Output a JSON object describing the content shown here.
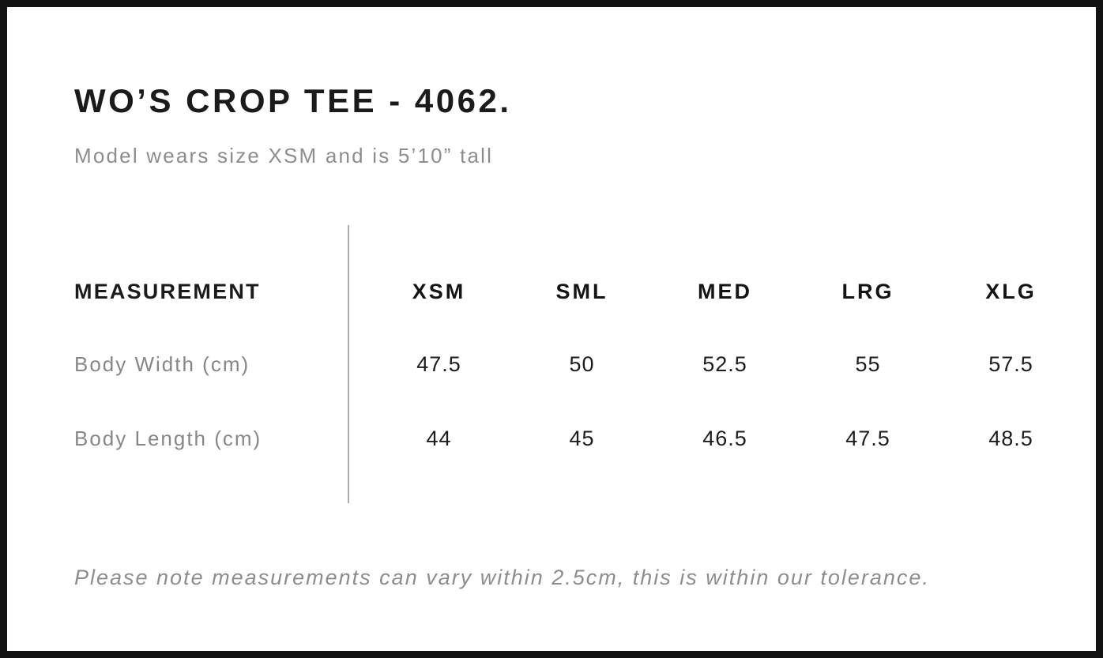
{
  "header": {
    "title": "WO’S CROP TEE - 4062.",
    "subtitle": "Model wears size XSM and is 5’10” tall"
  },
  "table": {
    "header_label": "MEASUREMENT",
    "sizes": [
      "XSM",
      "SML",
      "MED",
      "LRG",
      "XLG"
    ],
    "rows": [
      {
        "label": "Body Width (cm)",
        "values": [
          "47.5",
          "50",
          "52.5",
          "55",
          "57.5"
        ]
      },
      {
        "label": "Body Length (cm)",
        "values": [
          "44",
          "45",
          "46.5",
          "47.5",
          "48.5"
        ]
      }
    ]
  },
  "footer": {
    "note": "Please note measurements can vary within 2.5cm, this is within our tolerance."
  },
  "colors": {
    "frame_border": "#121212",
    "text_primary": "#1b1b1b",
    "text_secondary": "#8d8d8d",
    "divider": "#adadad",
    "background": "#ffffff"
  }
}
